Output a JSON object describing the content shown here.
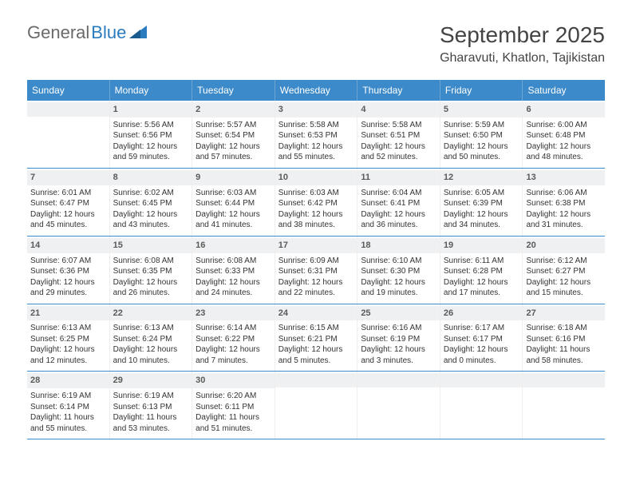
{
  "logo": {
    "word1": "General",
    "word2": "Blue"
  },
  "title": "September 2025",
  "location": "Gharavuti, Khatlon, Tajikistan",
  "colors": {
    "header_bg": "#3c8ac9",
    "header_text": "#ffffff",
    "row_divider": "#3c8ac9",
    "daynum_bg": "#eef0f1",
    "logo_gray": "#6a6a6a",
    "logo_blue": "#2b7bbf"
  },
  "typography": {
    "title_fontsize": 28,
    "location_fontsize": 16,
    "weekday_fontsize": 12,
    "daynum_fontsize": 11,
    "body_fontsize": 10
  },
  "weekdays": [
    "Sunday",
    "Monday",
    "Tuesday",
    "Wednesday",
    "Thursday",
    "Friday",
    "Saturday"
  ],
  "labels": {
    "sunrise": "Sunrise:",
    "sunset": "Sunset:",
    "daylight": "Daylight:"
  },
  "weeks": [
    [
      {
        "blank": true
      },
      {
        "num": "1",
        "sunrise": "5:56 AM",
        "sunset": "6:56 PM",
        "daylight": "12 hours and 59 minutes."
      },
      {
        "num": "2",
        "sunrise": "5:57 AM",
        "sunset": "6:54 PM",
        "daylight": "12 hours and 57 minutes."
      },
      {
        "num": "3",
        "sunrise": "5:58 AM",
        "sunset": "6:53 PM",
        "daylight": "12 hours and 55 minutes."
      },
      {
        "num": "4",
        "sunrise": "5:58 AM",
        "sunset": "6:51 PM",
        "daylight": "12 hours and 52 minutes."
      },
      {
        "num": "5",
        "sunrise": "5:59 AM",
        "sunset": "6:50 PM",
        "daylight": "12 hours and 50 minutes."
      },
      {
        "num": "6",
        "sunrise": "6:00 AM",
        "sunset": "6:48 PM",
        "daylight": "12 hours and 48 minutes."
      }
    ],
    [
      {
        "num": "7",
        "sunrise": "6:01 AM",
        "sunset": "6:47 PM",
        "daylight": "12 hours and 45 minutes."
      },
      {
        "num": "8",
        "sunrise": "6:02 AM",
        "sunset": "6:45 PM",
        "daylight": "12 hours and 43 minutes."
      },
      {
        "num": "9",
        "sunrise": "6:03 AM",
        "sunset": "6:44 PM",
        "daylight": "12 hours and 41 minutes."
      },
      {
        "num": "10",
        "sunrise": "6:03 AM",
        "sunset": "6:42 PM",
        "daylight": "12 hours and 38 minutes."
      },
      {
        "num": "11",
        "sunrise": "6:04 AM",
        "sunset": "6:41 PM",
        "daylight": "12 hours and 36 minutes."
      },
      {
        "num": "12",
        "sunrise": "6:05 AM",
        "sunset": "6:39 PM",
        "daylight": "12 hours and 34 minutes."
      },
      {
        "num": "13",
        "sunrise": "6:06 AM",
        "sunset": "6:38 PM",
        "daylight": "12 hours and 31 minutes."
      }
    ],
    [
      {
        "num": "14",
        "sunrise": "6:07 AM",
        "sunset": "6:36 PM",
        "daylight": "12 hours and 29 minutes."
      },
      {
        "num": "15",
        "sunrise": "6:08 AM",
        "sunset": "6:35 PM",
        "daylight": "12 hours and 26 minutes."
      },
      {
        "num": "16",
        "sunrise": "6:08 AM",
        "sunset": "6:33 PM",
        "daylight": "12 hours and 24 minutes."
      },
      {
        "num": "17",
        "sunrise": "6:09 AM",
        "sunset": "6:31 PM",
        "daylight": "12 hours and 22 minutes."
      },
      {
        "num": "18",
        "sunrise": "6:10 AM",
        "sunset": "6:30 PM",
        "daylight": "12 hours and 19 minutes."
      },
      {
        "num": "19",
        "sunrise": "6:11 AM",
        "sunset": "6:28 PM",
        "daylight": "12 hours and 17 minutes."
      },
      {
        "num": "20",
        "sunrise": "6:12 AM",
        "sunset": "6:27 PM",
        "daylight": "12 hours and 15 minutes."
      }
    ],
    [
      {
        "num": "21",
        "sunrise": "6:13 AM",
        "sunset": "6:25 PM",
        "daylight": "12 hours and 12 minutes."
      },
      {
        "num": "22",
        "sunrise": "6:13 AM",
        "sunset": "6:24 PM",
        "daylight": "12 hours and 10 minutes."
      },
      {
        "num": "23",
        "sunrise": "6:14 AM",
        "sunset": "6:22 PM",
        "daylight": "12 hours and 7 minutes."
      },
      {
        "num": "24",
        "sunrise": "6:15 AM",
        "sunset": "6:21 PM",
        "daylight": "12 hours and 5 minutes."
      },
      {
        "num": "25",
        "sunrise": "6:16 AM",
        "sunset": "6:19 PM",
        "daylight": "12 hours and 3 minutes."
      },
      {
        "num": "26",
        "sunrise": "6:17 AM",
        "sunset": "6:17 PM",
        "daylight": "12 hours and 0 minutes."
      },
      {
        "num": "27",
        "sunrise": "6:18 AM",
        "sunset": "6:16 PM",
        "daylight": "11 hours and 58 minutes."
      }
    ],
    [
      {
        "num": "28",
        "sunrise": "6:19 AM",
        "sunset": "6:14 PM",
        "daylight": "11 hours and 55 minutes."
      },
      {
        "num": "29",
        "sunrise": "6:19 AM",
        "sunset": "6:13 PM",
        "daylight": "11 hours and 53 minutes."
      },
      {
        "num": "30",
        "sunrise": "6:20 AM",
        "sunset": "6:11 PM",
        "daylight": "11 hours and 51 minutes."
      },
      {
        "blank": true
      },
      {
        "blank": true
      },
      {
        "blank": true
      },
      {
        "blank": true
      }
    ]
  ]
}
